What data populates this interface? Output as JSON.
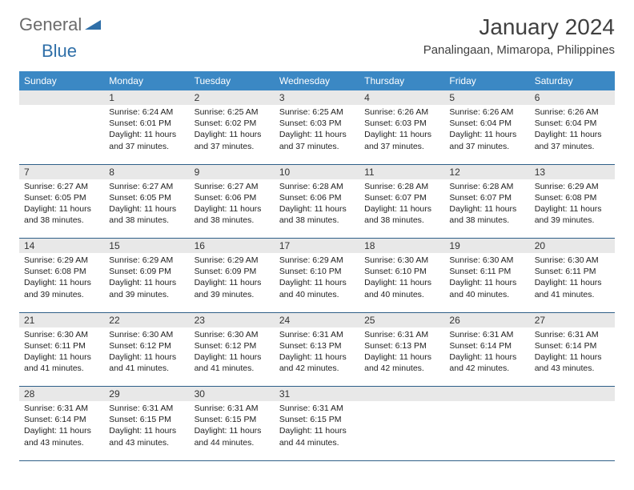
{
  "logo": {
    "word1": "General",
    "word2": "Blue"
  },
  "title": "January 2024",
  "location": "Panalingaan, Mimaropa, Philippines",
  "colors": {
    "header_bg": "#3b88c4",
    "header_text": "#ffffff",
    "daynum_bg": "#e8e8e8",
    "border": "#2f5f88",
    "logo_gray": "#6b6b6b",
    "logo_blue": "#2f6fa8"
  },
  "weekdays": [
    "Sunday",
    "Monday",
    "Tuesday",
    "Wednesday",
    "Thursday",
    "Friday",
    "Saturday"
  ],
  "weeks": [
    [
      {
        "n": "",
        "sunrise": "",
        "sunset": "",
        "daylight": ""
      },
      {
        "n": "1",
        "sunrise": "Sunrise: 6:24 AM",
        "sunset": "Sunset: 6:01 PM",
        "daylight": "Daylight: 11 hours and 37 minutes."
      },
      {
        "n": "2",
        "sunrise": "Sunrise: 6:25 AM",
        "sunset": "Sunset: 6:02 PM",
        "daylight": "Daylight: 11 hours and 37 minutes."
      },
      {
        "n": "3",
        "sunrise": "Sunrise: 6:25 AM",
        "sunset": "Sunset: 6:03 PM",
        "daylight": "Daylight: 11 hours and 37 minutes."
      },
      {
        "n": "4",
        "sunrise": "Sunrise: 6:26 AM",
        "sunset": "Sunset: 6:03 PM",
        "daylight": "Daylight: 11 hours and 37 minutes."
      },
      {
        "n": "5",
        "sunrise": "Sunrise: 6:26 AM",
        "sunset": "Sunset: 6:04 PM",
        "daylight": "Daylight: 11 hours and 37 minutes."
      },
      {
        "n": "6",
        "sunrise": "Sunrise: 6:26 AM",
        "sunset": "Sunset: 6:04 PM",
        "daylight": "Daylight: 11 hours and 37 minutes."
      }
    ],
    [
      {
        "n": "7",
        "sunrise": "Sunrise: 6:27 AM",
        "sunset": "Sunset: 6:05 PM",
        "daylight": "Daylight: 11 hours and 38 minutes."
      },
      {
        "n": "8",
        "sunrise": "Sunrise: 6:27 AM",
        "sunset": "Sunset: 6:05 PM",
        "daylight": "Daylight: 11 hours and 38 minutes."
      },
      {
        "n": "9",
        "sunrise": "Sunrise: 6:27 AM",
        "sunset": "Sunset: 6:06 PM",
        "daylight": "Daylight: 11 hours and 38 minutes."
      },
      {
        "n": "10",
        "sunrise": "Sunrise: 6:28 AM",
        "sunset": "Sunset: 6:06 PM",
        "daylight": "Daylight: 11 hours and 38 minutes."
      },
      {
        "n": "11",
        "sunrise": "Sunrise: 6:28 AM",
        "sunset": "Sunset: 6:07 PM",
        "daylight": "Daylight: 11 hours and 38 minutes."
      },
      {
        "n": "12",
        "sunrise": "Sunrise: 6:28 AM",
        "sunset": "Sunset: 6:07 PM",
        "daylight": "Daylight: 11 hours and 38 minutes."
      },
      {
        "n": "13",
        "sunrise": "Sunrise: 6:29 AM",
        "sunset": "Sunset: 6:08 PM",
        "daylight": "Daylight: 11 hours and 39 minutes."
      }
    ],
    [
      {
        "n": "14",
        "sunrise": "Sunrise: 6:29 AM",
        "sunset": "Sunset: 6:08 PM",
        "daylight": "Daylight: 11 hours and 39 minutes."
      },
      {
        "n": "15",
        "sunrise": "Sunrise: 6:29 AM",
        "sunset": "Sunset: 6:09 PM",
        "daylight": "Daylight: 11 hours and 39 minutes."
      },
      {
        "n": "16",
        "sunrise": "Sunrise: 6:29 AM",
        "sunset": "Sunset: 6:09 PM",
        "daylight": "Daylight: 11 hours and 39 minutes."
      },
      {
        "n": "17",
        "sunrise": "Sunrise: 6:29 AM",
        "sunset": "Sunset: 6:10 PM",
        "daylight": "Daylight: 11 hours and 40 minutes."
      },
      {
        "n": "18",
        "sunrise": "Sunrise: 6:30 AM",
        "sunset": "Sunset: 6:10 PM",
        "daylight": "Daylight: 11 hours and 40 minutes."
      },
      {
        "n": "19",
        "sunrise": "Sunrise: 6:30 AM",
        "sunset": "Sunset: 6:11 PM",
        "daylight": "Daylight: 11 hours and 40 minutes."
      },
      {
        "n": "20",
        "sunrise": "Sunrise: 6:30 AM",
        "sunset": "Sunset: 6:11 PM",
        "daylight": "Daylight: 11 hours and 41 minutes."
      }
    ],
    [
      {
        "n": "21",
        "sunrise": "Sunrise: 6:30 AM",
        "sunset": "Sunset: 6:11 PM",
        "daylight": "Daylight: 11 hours and 41 minutes."
      },
      {
        "n": "22",
        "sunrise": "Sunrise: 6:30 AM",
        "sunset": "Sunset: 6:12 PM",
        "daylight": "Daylight: 11 hours and 41 minutes."
      },
      {
        "n": "23",
        "sunrise": "Sunrise: 6:30 AM",
        "sunset": "Sunset: 6:12 PM",
        "daylight": "Daylight: 11 hours and 41 minutes."
      },
      {
        "n": "24",
        "sunrise": "Sunrise: 6:31 AM",
        "sunset": "Sunset: 6:13 PM",
        "daylight": "Daylight: 11 hours and 42 minutes."
      },
      {
        "n": "25",
        "sunrise": "Sunrise: 6:31 AM",
        "sunset": "Sunset: 6:13 PM",
        "daylight": "Daylight: 11 hours and 42 minutes."
      },
      {
        "n": "26",
        "sunrise": "Sunrise: 6:31 AM",
        "sunset": "Sunset: 6:14 PM",
        "daylight": "Daylight: 11 hours and 42 minutes."
      },
      {
        "n": "27",
        "sunrise": "Sunrise: 6:31 AM",
        "sunset": "Sunset: 6:14 PM",
        "daylight": "Daylight: 11 hours and 43 minutes."
      }
    ],
    [
      {
        "n": "28",
        "sunrise": "Sunrise: 6:31 AM",
        "sunset": "Sunset: 6:14 PM",
        "daylight": "Daylight: 11 hours and 43 minutes."
      },
      {
        "n": "29",
        "sunrise": "Sunrise: 6:31 AM",
        "sunset": "Sunset: 6:15 PM",
        "daylight": "Daylight: 11 hours and 43 minutes."
      },
      {
        "n": "30",
        "sunrise": "Sunrise: 6:31 AM",
        "sunset": "Sunset: 6:15 PM",
        "daylight": "Daylight: 11 hours and 44 minutes."
      },
      {
        "n": "31",
        "sunrise": "Sunrise: 6:31 AM",
        "sunset": "Sunset: 6:15 PM",
        "daylight": "Daylight: 11 hours and 44 minutes."
      },
      {
        "n": "",
        "sunrise": "",
        "sunset": "",
        "daylight": ""
      },
      {
        "n": "",
        "sunrise": "",
        "sunset": "",
        "daylight": ""
      },
      {
        "n": "",
        "sunrise": "",
        "sunset": "",
        "daylight": ""
      }
    ]
  ]
}
